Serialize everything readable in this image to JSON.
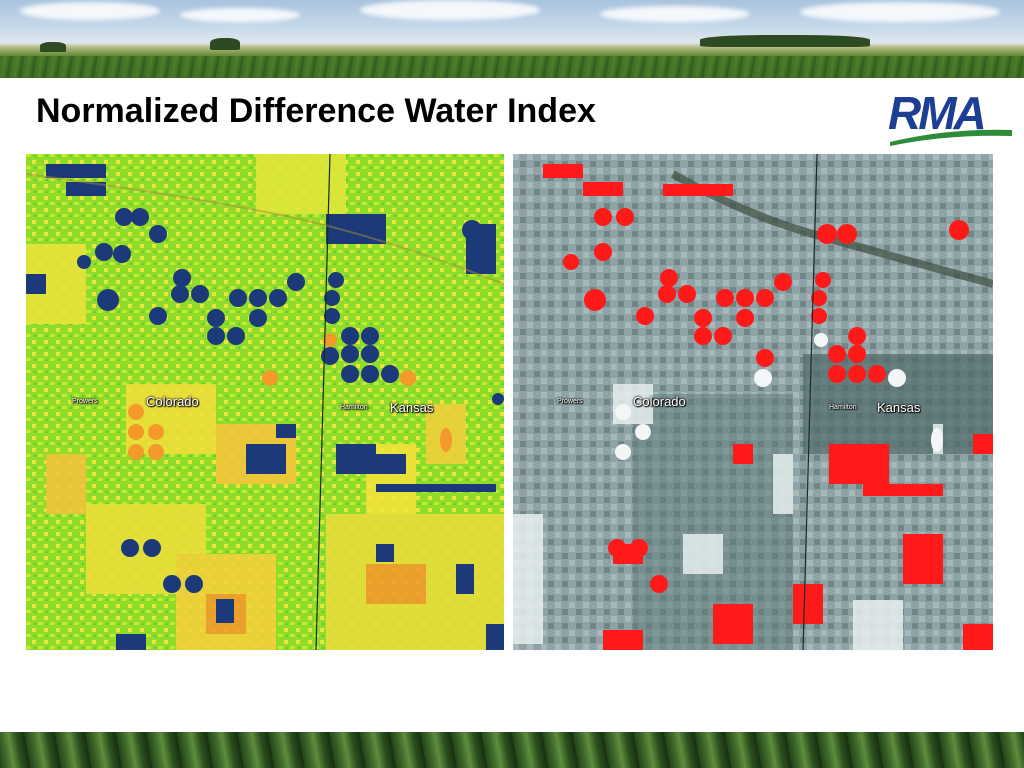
{
  "slide": {
    "title": "Normalized Difference Water Index"
  },
  "logo": {
    "text": "RMA",
    "colors": {
      "text": "#1c3f94",
      "swoosh": "#2e8b3a"
    }
  },
  "maps": {
    "left": {
      "kind": "NDWI color scale",
      "labels": {
        "state_west": "Colorado",
        "state_east": "Kansas",
        "town_west": "Prowers",
        "town_east": "Hamilton"
      },
      "colors": {
        "base": "#8fdc2a",
        "dry": "#f2e33a",
        "very_dry": "#f39a2b",
        "water": "#1c3a7a"
      }
    },
    "right": {
      "kind": "false color composite",
      "labels": {
        "state_west": "Colorado",
        "state_east": "Kansas",
        "town_west": "Prowers",
        "town_east": "Hamilton"
      },
      "colors": {
        "base": "#8fa3a6",
        "vegetation": "#ff1a1a",
        "bright": "#e8f0f0",
        "dark": "#3f5a5a"
      }
    }
  },
  "images": {
    "top_banner": "crop field under cloudy sky",
    "bottom_banner": "soybean leaves"
  }
}
